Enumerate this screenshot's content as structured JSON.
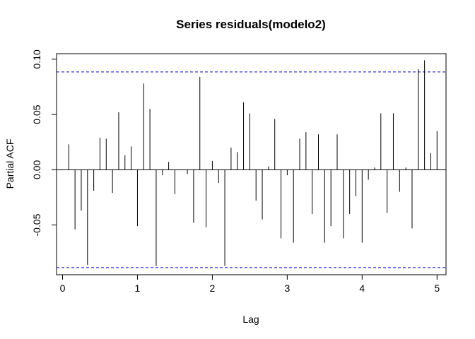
{
  "chart_data": {
    "type": "bar",
    "subtype": "pacf-spike-plot",
    "title": "Series  residuals(modelo2)",
    "xlabel": "Lag",
    "ylabel": "Partial ACF",
    "xlim": [
      -0.08,
      5.12
    ],
    "ylim": [
      -0.095,
      0.105
    ],
    "xticks": [
      0,
      1,
      2,
      3,
      4,
      5
    ],
    "xtick_labels": [
      "0",
      "1",
      "2",
      "3",
      "4",
      "5"
    ],
    "yticks": [
      -0.05,
      0.0,
      0.05,
      0.1
    ],
    "ytick_labels": [
      "-0.05",
      "0.00",
      "0.05",
      "0.10"
    ],
    "confidence_limits": [
      0.0885,
      -0.0885
    ],
    "confidence_line_color": "#0000cd",
    "spike_color": "#000000",
    "grid": false,
    "lags": [
      0.0833,
      0.1667,
      0.25,
      0.3333,
      0.4167,
      0.5,
      0.5833,
      0.6667,
      0.75,
      0.8333,
      0.9167,
      1.0,
      1.0833,
      1.1667,
      1.25,
      1.3333,
      1.4167,
      1.5,
      1.5833,
      1.6667,
      1.75,
      1.8333,
      1.9167,
      2.0,
      2.0833,
      2.1667,
      2.25,
      2.3333,
      2.4167,
      2.5,
      2.5833,
      2.6667,
      2.75,
      2.8333,
      2.9167,
      3.0,
      3.0833,
      3.1667,
      3.25,
      3.3333,
      3.4167,
      3.5,
      3.5833,
      3.6667,
      3.75,
      3.8333,
      3.9167,
      4.0,
      4.0833,
      4.1667,
      4.25,
      4.3333,
      4.4167,
      4.5,
      4.5833,
      4.6667,
      4.75,
      4.8333,
      4.9167,
      5.0
    ],
    "values": [
      0.023,
      -0.054,
      -0.037,
      -0.086,
      -0.019,
      0.029,
      0.028,
      -0.021,
      0.052,
      0.013,
      0.021,
      -0.051,
      0.078,
      0.055,
      -0.087,
      -0.005,
      0.007,
      -0.022,
      0.0,
      -0.004,
      -0.048,
      0.084,
      -0.052,
      0.008,
      -0.012,
      -0.087,
      0.02,
      0.016,
      0.061,
      0.051,
      -0.028,
      -0.045,
      0.003,
      0.046,
      -0.062,
      -0.005,
      -0.066,
      0.028,
      0.034,
      -0.04,
      0.032,
      -0.066,
      -0.051,
      0.032,
      -0.062,
      -0.04,
      -0.024,
      -0.066,
      -0.009,
      0.002,
      0.051,
      -0.039,
      0.051,
      -0.02,
      0.002,
      -0.053,
      0.091,
      0.099,
      0.015,
      0.035
    ]
  }
}
